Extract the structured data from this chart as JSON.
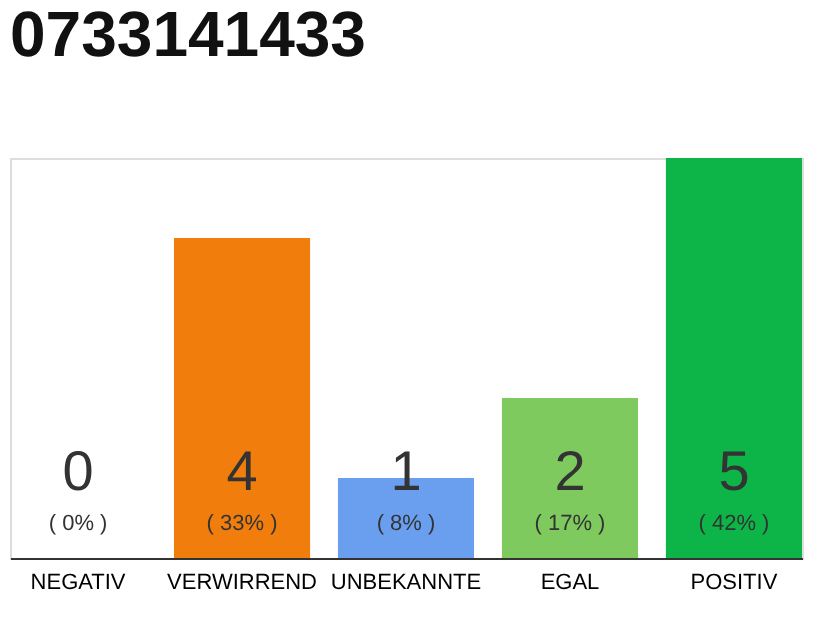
{
  "chart_data": {
    "type": "bar",
    "title": "0733141433",
    "categories": [
      "NEGATIV",
      "VERWIRREND",
      "UNBEKANNTE",
      "EGAL",
      "POSITIV"
    ],
    "values": [
      0,
      4,
      1,
      2,
      5
    ],
    "colors": [
      "#888888",
      "#f07d0c",
      "#6a9ff0",
      "#7fca5e",
      "#0db548"
    ],
    "data_labels": true,
    "annotations": [
      "( 0% )",
      "( 33% )",
      "( 8% )",
      "( 17% )",
      "( 42% )"
    ]
  }
}
